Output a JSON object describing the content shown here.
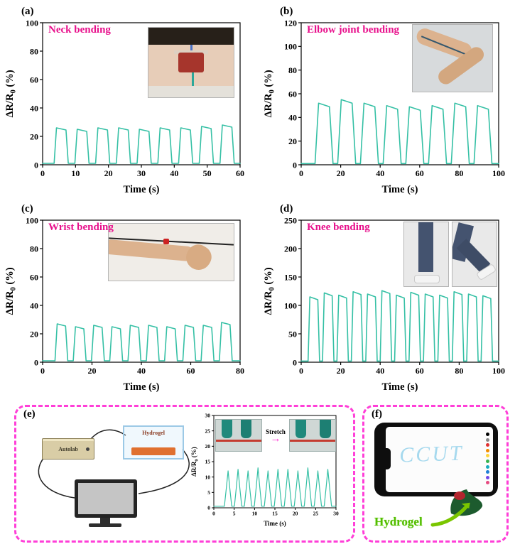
{
  "figure": {
    "accent_pink": "#e8118c",
    "box_border_pink": "#ff3fd8",
    "line_teal": "#35c0a5"
  },
  "panels": {
    "a": {
      "tag": "(a)"
    },
    "b": {
      "tag": "(b)"
    },
    "c": {
      "tag": "(c)"
    },
    "d": {
      "tag": "(d)"
    },
    "e": {
      "tag": "(e)",
      "autolab_label": "Autolab",
      "chamber_label": "Hydrogel",
      "stretch_label": "Stretch",
      "stretch_arrow": "→"
    },
    "f": {
      "tag": "(f)",
      "screen_text": "CCUT",
      "hydrogel_label": "Hydrogel",
      "palette_colors": [
        "#000000",
        "#888888",
        "#e03131",
        "#f08c00",
        "#ffd43b",
        "#37b24d",
        "#15aabf",
        "#1c7ed6",
        "#7048e8",
        "#e64980"
      ]
    }
  },
  "chart_data": [
    {
      "id": "a",
      "type": "line",
      "title": "Neck bending",
      "xlabel": "Time (s)",
      "ylabel_parts": [
        [
          "ΔR/R",
          false
        ],
        [
          "0",
          true
        ],
        [
          " (%)",
          false
        ]
      ],
      "xlim": [
        0,
        60
      ],
      "ylim": [
        0,
        100
      ],
      "xticks": [
        0,
        10,
        20,
        30,
        40,
        50,
        60
      ],
      "yticks": [
        0,
        20,
        40,
        60,
        80,
        100
      ],
      "line_color": "#35c0a5",
      "waveform": {
        "shape": "square",
        "baseline": 1,
        "start": 3.5,
        "period": 6.3,
        "rise": 0.7,
        "high": 2.9,
        "droop": 1.5,
        "peaks": [
          26,
          25,
          26,
          26,
          25,
          26,
          26,
          27,
          28
        ],
        "xend": 60
      }
    },
    {
      "id": "b",
      "type": "line",
      "title": "Elbow joint bending",
      "xlabel": "Time (s)",
      "ylabel_parts": [
        [
          "ΔR/R",
          false
        ],
        [
          "0",
          true
        ],
        [
          " (%)",
          false
        ]
      ],
      "xlim": [
        0,
        100
      ],
      "ylim": [
        0,
        120
      ],
      "xticks": [
        0,
        20,
        40,
        60,
        80,
        100
      ],
      "yticks": [
        0,
        20,
        40,
        60,
        80,
        100,
        120
      ],
      "line_color": "#35c0a5",
      "waveform": {
        "shape": "square",
        "baseline": 1,
        "start": 7,
        "period": 11.5,
        "rise": 1.8,
        "high": 5.5,
        "droop": 3,
        "peaks": [
          52,
          55,
          52,
          50,
          49,
          50,
          52,
          50
        ],
        "xend": 100
      }
    },
    {
      "id": "c",
      "type": "line",
      "title": "Wrist bending",
      "xlabel": "Time (s)",
      "ylabel_parts": [
        [
          "ΔR/R",
          false
        ],
        [
          "0",
          true
        ],
        [
          "  (%)",
          false
        ]
      ],
      "xlim": [
        0,
        80
      ],
      "ylim": [
        0,
        100
      ],
      "xticks": [
        0,
        20,
        40,
        60,
        80
      ],
      "yticks": [
        0,
        20,
        40,
        60,
        80,
        100
      ],
      "line_color": "#35c0a5",
      "waveform": {
        "shape": "square",
        "baseline": 1,
        "start": 5,
        "period": 7.4,
        "rise": 0.9,
        "high": 3.4,
        "droop": 1.5,
        "peaks": [
          27,
          25,
          26,
          25,
          26,
          26,
          25,
          26,
          26,
          28
        ],
        "xend": 80
      }
    },
    {
      "id": "d",
      "type": "line",
      "title": "Knee bending",
      "xlabel": "Time (s)",
      "ylabel_parts": [
        [
          "ΔR/R",
          false
        ],
        [
          "0",
          true
        ],
        [
          " (%)",
          false
        ]
      ],
      "xlim": [
        0,
        100
      ],
      "ylim": [
        0,
        250
      ],
      "xticks": [
        0,
        20,
        40,
        60,
        80,
        100
      ],
      "yticks": [
        0,
        50,
        100,
        150,
        200,
        250
      ],
      "line_color": "#35c0a5",
      "waveform": {
        "shape": "square",
        "baseline": 2,
        "start": 3.5,
        "period": 7.3,
        "rise": 0.9,
        "high": 4.0,
        "droop": 5,
        "peaks": [
          115,
          122,
          118,
          124,
          120,
          126,
          118,
          123,
          120,
          118,
          124,
          120,
          117
        ],
        "xend": 100
      }
    },
    {
      "id": "e",
      "type": "line",
      "title": "",
      "xlabel": "Time (s)",
      "ylabel_parts": [
        [
          "ΔR/R",
          false
        ],
        [
          "0",
          true
        ],
        [
          " (%)",
          false
        ]
      ],
      "xlim": [
        0,
        30
      ],
      "ylim": [
        0,
        30
      ],
      "xticks": [
        0,
        5,
        10,
        15,
        20,
        25,
        30
      ],
      "yticks": [
        0,
        5,
        10,
        15,
        20,
        25,
        30
      ],
      "line_color": "#35c0a5",
      "waveform": {
        "shape": "spike",
        "baseline": 0.5,
        "start": 2.6,
        "period": 2.45,
        "halfwidth": 0.9,
        "peaks": [
          12,
          12.5,
          12,
          13,
          12,
          12.5,
          12.5,
          12,
          13,
          12,
          12.5
        ],
        "xend": 30
      }
    }
  ]
}
